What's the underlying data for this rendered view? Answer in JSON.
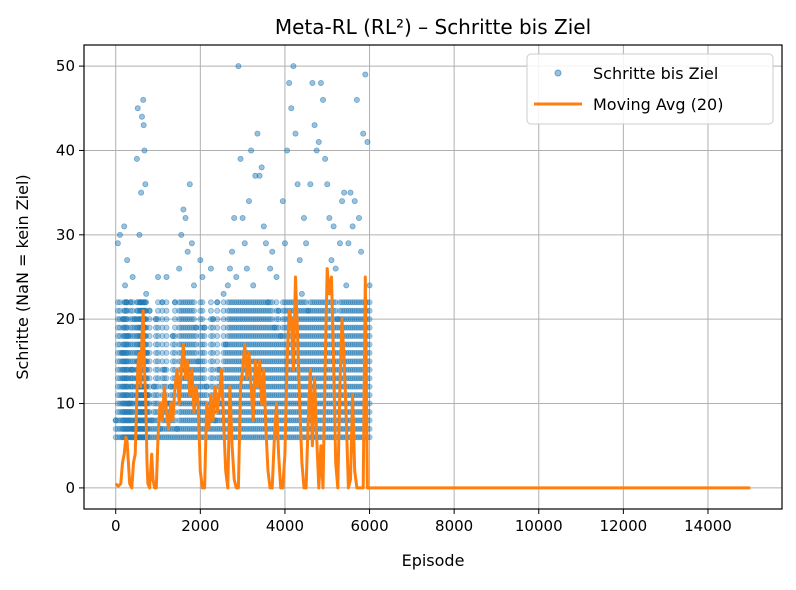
{
  "chart_data": {
    "type": "scatter",
    "title": "Meta-RL (RL²) – Schritte bis Ziel",
    "xlabel": "Episode",
    "ylabel": "Schritte (NaN = kein Ziel)",
    "xlim": [
      -750,
      15750
    ],
    "ylim": [
      -2.5,
      52.5
    ],
    "xticks": [
      0,
      2000,
      4000,
      6000,
      8000,
      10000,
      12000,
      14000
    ],
    "yticks": [
      0,
      10,
      20,
      30,
      40,
      50
    ],
    "grid": true,
    "legend_position": "top-right",
    "colors": {
      "scatter": "#1f77b4",
      "moving_avg": "#ff7f0e"
    },
    "series": [
      {
        "name": "Schritte bis Ziel",
        "kind": "scatter",
        "points": [
          [
            0,
            8
          ],
          [
            50,
            29
          ],
          [
            100,
            30
          ],
          [
            150,
            16
          ],
          [
            170,
            20
          ],
          [
            200,
            31
          ],
          [
            220,
            24
          ],
          [
            250,
            22
          ],
          [
            270,
            27
          ],
          [
            300,
            18
          ],
          [
            320,
            10
          ],
          [
            350,
            22
          ],
          [
            380,
            14
          ],
          [
            400,
            25
          ],
          [
            420,
            7
          ],
          [
            450,
            20
          ],
          [
            480,
            8
          ],
          [
            500,
            39
          ],
          [
            520,
            45
          ],
          [
            540,
            15
          ],
          [
            560,
            30
          ],
          [
            580,
            22
          ],
          [
            600,
            35
          ],
          [
            620,
            44
          ],
          [
            650,
            46
          ],
          [
            660,
            43
          ],
          [
            680,
            40
          ],
          [
            700,
            36
          ],
          [
            720,
            23
          ],
          [
            740,
            16
          ],
          [
            760,
            11
          ],
          [
            800,
            21
          ],
          [
            850,
            8
          ],
          [
            900,
            12
          ],
          [
            950,
            20
          ],
          [
            1000,
            25
          ],
          [
            1050,
            7
          ],
          [
            1100,
            22
          ],
          [
            1150,
            14
          ],
          [
            1200,
            25
          ],
          [
            1250,
            10
          ],
          [
            1300,
            12
          ],
          [
            1350,
            18
          ],
          [
            1400,
            22
          ],
          [
            1450,
            7
          ],
          [
            1500,
            26
          ],
          [
            1550,
            30
          ],
          [
            1600,
            33
          ],
          [
            1650,
            32
          ],
          [
            1700,
            28
          ],
          [
            1750,
            36
          ],
          [
            1800,
            29
          ],
          [
            1850,
            24
          ],
          [
            1900,
            19
          ],
          [
            1950,
            15
          ],
          [
            2000,
            27
          ],
          [
            2050,
            25
          ],
          [
            2100,
            19
          ],
          [
            2150,
            12
          ],
          [
            2200,
            9
          ],
          [
            2250,
            26
          ],
          [
            2300,
            20
          ],
          [
            2350,
            8
          ],
          [
            2400,
            22
          ],
          [
            2450,
            14
          ],
          [
            2500,
            10
          ],
          [
            2550,
            23
          ],
          [
            2600,
            17
          ],
          [
            2650,
            24
          ],
          [
            2700,
            26
          ],
          [
            2750,
            28
          ],
          [
            2800,
            32
          ],
          [
            2850,
            25
          ],
          [
            2900,
            50
          ],
          [
            2950,
            39
          ],
          [
            3000,
            32
          ],
          [
            3050,
            29
          ],
          [
            3100,
            26
          ],
          [
            3150,
            34
          ],
          [
            3200,
            40
          ],
          [
            3250,
            24
          ],
          [
            3300,
            37
          ],
          [
            3350,
            42
          ],
          [
            3400,
            37
          ],
          [
            3450,
            38
          ],
          [
            3500,
            31
          ],
          [
            3550,
            29
          ],
          [
            3600,
            22
          ],
          [
            3650,
            26
          ],
          [
            3700,
            28
          ],
          [
            3750,
            19
          ],
          [
            3800,
            25
          ],
          [
            3850,
            21
          ],
          [
            3900,
            18
          ],
          [
            3950,
            34
          ],
          [
            4000,
            29
          ],
          [
            4050,
            40
          ],
          [
            4100,
            48
          ],
          [
            4150,
            45
          ],
          [
            4200,
            50
          ],
          [
            4250,
            42
          ],
          [
            4300,
            36
          ],
          [
            4350,
            27
          ],
          [
            4400,
            23
          ],
          [
            4450,
            32
          ],
          [
            4500,
            29
          ],
          [
            4550,
            21
          ],
          [
            4600,
            36
          ],
          [
            4650,
            48
          ],
          [
            4700,
            43
          ],
          [
            4750,
            40
          ],
          [
            4800,
            41
          ],
          [
            4850,
            48
          ],
          [
            4900,
            46
          ],
          [
            4950,
            39
          ],
          [
            5000,
            36
          ],
          [
            5050,
            32
          ],
          [
            5100,
            27
          ],
          [
            5150,
            31
          ],
          [
            5200,
            26
          ],
          [
            5250,
            20
          ],
          [
            5300,
            29
          ],
          [
            5350,
            34
          ],
          [
            5400,
            35
          ],
          [
            5450,
            24
          ],
          [
            5500,
            29
          ],
          [
            5550,
            35
          ],
          [
            5600,
            31
          ],
          [
            5650,
            34
          ],
          [
            5700,
            46
          ],
          [
            5750,
            32
          ],
          [
            5800,
            28
          ],
          [
            5850,
            42
          ],
          [
            5900,
            49
          ],
          [
            5950,
            41
          ],
          [
            6000,
            24
          ]
        ]
      },
      {
        "name": "Moving Avg (20)",
        "kind": "line",
        "points": [
          [
            0,
            0.5
          ],
          [
            60,
            0.2
          ],
          [
            120,
            0.5
          ],
          [
            160,
            3
          ],
          [
            200,
            4
          ],
          [
            240,
            6
          ],
          [
            270,
            5.5
          ],
          [
            300,
            3
          ],
          [
            330,
            0.5
          ],
          [
            380,
            0
          ],
          [
            420,
            3
          ],
          [
            460,
            4
          ],
          [
            500,
            11
          ],
          [
            530,
            15
          ],
          [
            560,
            16
          ],
          [
            590,
            12
          ],
          [
            620,
            18
          ],
          [
            650,
            21
          ],
          [
            680,
            14
          ],
          [
            710,
            10
          ],
          [
            740,
            3
          ],
          [
            760,
            0.5
          ],
          [
            800,
            0
          ],
          [
            850,
            4
          ],
          [
            880,
            1
          ],
          [
            920,
            0
          ],
          [
            960,
            0
          ],
          [
            1000,
            6
          ],
          [
            1050,
            10
          ],
          [
            1100,
            8
          ],
          [
            1150,
            12
          ],
          [
            1200,
            9
          ],
          [
            1250,
            7
          ],
          [
            1300,
            10
          ],
          [
            1350,
            8
          ],
          [
            1400,
            12
          ],
          [
            1450,
            14
          ],
          [
            1500,
            10
          ],
          [
            1550,
            14
          ],
          [
            1600,
            17
          ],
          [
            1650,
            13
          ],
          [
            1700,
            15
          ],
          [
            1750,
            11
          ],
          [
            1800,
            14
          ],
          [
            1850,
            9
          ],
          [
            1900,
            12
          ],
          [
            1950,
            10
          ],
          [
            2000,
            2
          ],
          [
            2050,
            0
          ],
          [
            2100,
            0
          ],
          [
            2150,
            10
          ],
          [
            2200,
            7
          ],
          [
            2250,
            11
          ],
          [
            2300,
            8
          ],
          [
            2350,
            12
          ],
          [
            2400,
            9
          ],
          [
            2450,
            11
          ],
          [
            2500,
            14
          ],
          [
            2550,
            8
          ],
          [
            2600,
            2
          ],
          [
            2650,
            0
          ],
          [
            2700,
            12
          ],
          [
            2750,
            5
          ],
          [
            2800,
            1
          ],
          [
            2850,
            0
          ],
          [
            2900,
            0
          ],
          [
            2950,
            12
          ],
          [
            3000,
            14
          ],
          [
            3050,
            17
          ],
          [
            3100,
            13
          ],
          [
            3150,
            16
          ],
          [
            3200,
            12
          ],
          [
            3250,
            8
          ],
          [
            3300,
            15
          ],
          [
            3350,
            12
          ],
          [
            3400,
            15
          ],
          [
            3450,
            10
          ],
          [
            3500,
            14
          ],
          [
            3550,
            7
          ],
          [
            3600,
            2
          ],
          [
            3650,
            0
          ],
          [
            3700,
            0
          ],
          [
            3750,
            6
          ],
          [
            3800,
            10
          ],
          [
            3850,
            4
          ],
          [
            3900,
            0
          ],
          [
            3950,
            0
          ],
          [
            4000,
            4
          ],
          [
            4050,
            15
          ],
          [
            4100,
            21
          ],
          [
            4150,
            20
          ],
          [
            4200,
            14
          ],
          [
            4250,
            25
          ],
          [
            4300,
            18
          ],
          [
            4350,
            10
          ],
          [
            4400,
            3
          ],
          [
            4450,
            0
          ],
          [
            4500,
            0
          ],
          [
            4550,
            8
          ],
          [
            4600,
            14
          ],
          [
            4650,
            5
          ],
          [
            4700,
            13
          ],
          [
            4750,
            6
          ],
          [
            4800,
            0
          ],
          [
            4850,
            5
          ],
          [
            4900,
            0
          ],
          [
            4950,
            14
          ],
          [
            5000,
            26
          ],
          [
            5050,
            23
          ],
          [
            5100,
            25
          ],
          [
            5150,
            15
          ],
          [
            5200,
            3
          ],
          [
            5250,
            0
          ],
          [
            5300,
            12
          ],
          [
            5350,
            20
          ],
          [
            5400,
            15
          ],
          [
            5450,
            8
          ],
          [
            5500,
            0
          ],
          [
            5550,
            1
          ],
          [
            5600,
            11
          ],
          [
            5650,
            2
          ],
          [
            5700,
            0
          ],
          [
            5750,
            0
          ],
          [
            5800,
            0
          ],
          [
            5850,
            0
          ],
          [
            5900,
            25
          ],
          [
            5950,
            0
          ],
          [
            6000,
            0
          ],
          [
            8000,
            0
          ],
          [
            10000,
            0
          ],
          [
            12000,
            0
          ],
          [
            15000,
            0
          ]
        ]
      }
    ]
  }
}
